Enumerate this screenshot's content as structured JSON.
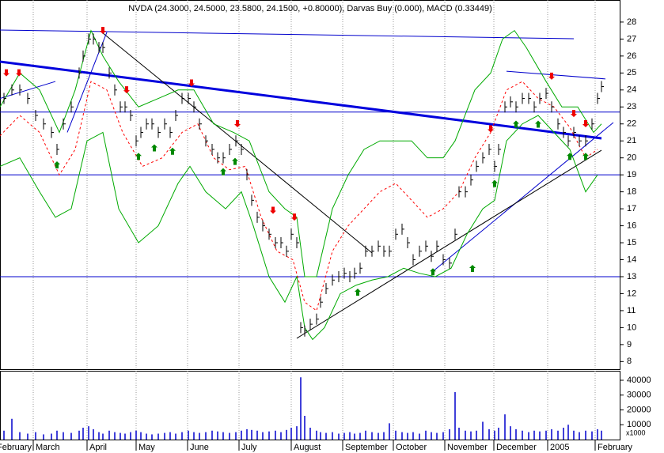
{
  "chart_data": [
    {
      "type": "price",
      "title": "NVDA (24.3000, 24.5000, 23.5800, 24.1500, +0.80000), Darvas Buy (0.000), MACD (0.33449)",
      "xlim": [
        0,
        783
      ],
      "ylim": [
        7.55,
        29.3
      ],
      "yticks": [
        8,
        9,
        10,
        11,
        12,
        13,
        14,
        15,
        16,
        17,
        18,
        19,
        20,
        21,
        22,
        23,
        24,
        25,
        26,
        27,
        28
      ],
      "x": [
        5,
        15,
        25,
        35,
        45,
        55,
        65,
        72,
        80,
        90,
        100,
        105,
        112,
        118,
        125,
        130,
        138,
        145,
        152,
        158,
        165,
        172,
        178,
        185,
        192,
        200,
        208,
        215,
        222,
        230,
        238,
        245,
        252,
        260,
        268,
        275,
        282,
        290,
        298,
        305,
        312,
        318,
        325,
        332,
        340,
        348,
        355,
        362,
        368,
        375,
        380,
        385,
        392,
        400,
        405,
        412,
        420,
        428,
        435,
        442,
        448,
        455,
        462,
        470,
        478,
        485,
        492,
        500,
        508,
        515,
        522,
        530,
        538,
        545,
        552,
        560,
        568,
        575,
        580,
        588,
        595,
        602,
        610,
        618,
        625,
        630,
        638,
        645,
        652,
        660,
        668,
        675,
        682,
        690,
        697,
        705,
        712,
        718,
        725,
        732,
        740,
        748,
        755,
        760
      ],
      "series": [
        {
          "name": "NVDA",
          "color": "#000000",
          "style": "bars",
          "values": [
            23.5,
            24,
            24,
            23.5,
            22.5,
            22,
            21.5,
            20.5,
            22,
            23,
            25,
            26,
            27,
            27,
            26.5,
            26.5,
            25,
            24,
            23,
            23,
            22.5,
            21,
            21.5,
            22,
            22,
            21.5,
            22,
            21.5,
            22.5,
            23.5,
            23.5,
            23,
            22,
            21,
            20.5,
            20,
            20,
            20.5,
            21,
            20.5,
            19,
            17.5,
            16.5,
            16,
            15.5,
            15,
            15,
            14.5,
            15.5,
            15,
            10,
            9.8,
            10.2,
            10.5,
            11.5,
            12.3,
            12.8,
            13,
            13.2,
            13,
            13.2,
            13.5,
            14.5,
            14.5,
            14.8,
            14.5,
            14.5,
            15.5,
            15.8,
            15,
            14,
            14.5,
            14.8,
            14.2,
            14.8,
            14,
            13.8,
            15.5,
            18,
            18,
            18.7,
            19.5,
            20,
            20.5,
            19.5,
            20.5,
            23,
            23.3,
            23,
            23.5,
            23.5,
            23,
            23.5,
            23.8,
            23,
            22,
            21.5,
            21,
            21.5,
            21,
            21,
            22,
            23.5,
            24.2
          ]
        }
      ],
      "bands": [
        {
          "color": "#00aa00",
          "dash": false,
          "x": [
            0,
            25,
            50,
            75,
            95,
            115,
            130,
            150,
            175,
            200,
            225,
            245,
            270,
            295,
            315,
            340,
            360,
            375,
            385,
            400,
            420,
            440,
            460,
            480,
            500,
            520,
            540,
            560,
            575,
            600,
            620,
            635,
            650,
            665,
            690,
            710,
            730,
            750,
            760
          ],
          "values": [
            23,
            25,
            24,
            21.5,
            24,
            27.5,
            26,
            24.5,
            23,
            23.5,
            24,
            24,
            22,
            21.5,
            21,
            18,
            17,
            16.5,
            13,
            13,
            17,
            19,
            20.5,
            21,
            21,
            21,
            20,
            20,
            21,
            24,
            25,
            27,
            27.5,
            26.5,
            24.5,
            23,
            23,
            21.5,
            22
          ]
        },
        {
          "color": "#00aa00",
          "dash": false,
          "x": [
            0,
            25,
            50,
            70,
            90,
            110,
            130,
            150,
            175,
            200,
            225,
            240,
            260,
            285,
            305,
            320,
            340,
            360,
            375,
            385,
            395,
            410,
            430,
            450,
            470,
            490,
            510,
            530,
            550,
            570,
            590,
            610,
            625,
            640,
            660,
            680,
            700,
            720,
            740,
            755
          ],
          "values": [
            19.5,
            20,
            18,
            16.5,
            17,
            21,
            21.5,
            17,
            15,
            16,
            18.5,
            19.5,
            18,
            17,
            18,
            16,
            13,
            11.5,
            13,
            10,
            9.3,
            10,
            12,
            12.5,
            12.8,
            13,
            13.5,
            13.2,
            13,
            13.5,
            15.5,
            17,
            17.5,
            21,
            22,
            22.5,
            21.5,
            20.5,
            18,
            19
          ]
        },
        {
          "color": "#ff0000",
          "dash": true,
          "x": [
            0,
            25,
            50,
            75,
            95,
            115,
            135,
            155,
            180,
            205,
            230,
            250,
            270,
            290,
            310,
            330,
            350,
            370,
            385,
            400,
            420,
            440,
            460,
            480,
            500,
            520,
            540,
            560,
            580,
            600,
            620,
            640,
            660,
            680,
            700,
            720,
            740,
            755
          ],
          "values": [
            21.3,
            22.5,
            21.5,
            19,
            20.5,
            24.5,
            24,
            21.5,
            19.5,
            20,
            21.5,
            22,
            20,
            19.3,
            19.5,
            16.5,
            14.5,
            14,
            11.5,
            11,
            14.5,
            16,
            17,
            18,
            18.5,
            17.5,
            16.5,
            17,
            18,
            20,
            21.5,
            24,
            24.5,
            23.5,
            23,
            21.8,
            20,
            20.5
          ]
        }
      ],
      "lines": [
        {
          "x1": 0,
          "y1": 22.7,
          "x2": 783,
          "y2": 22.7,
          "color": "#0000cc",
          "width": 1
        },
        {
          "x1": 0,
          "y1": 19,
          "x2": 783,
          "y2": 19,
          "color": "#0000cc",
          "width": 1
        },
        {
          "x1": 0,
          "y1": 13,
          "x2": 783,
          "y2": 13,
          "color": "#0000cc",
          "width": 1
        },
        {
          "x1": 0,
          "y1": 25.67,
          "x2": 760,
          "y2": 21.15,
          "color": "#0000dd",
          "width": 3
        },
        {
          "x1": 0,
          "y1": 27.53,
          "x2": 725,
          "y2": 27.02,
          "color": "#0000cc",
          "width": 1
        },
        {
          "x1": 640,
          "y1": 25.1,
          "x2": 765,
          "y2": 24.65,
          "color": "#0000cc",
          "width": 1
        },
        {
          "x1": 545,
          "y1": 13.24,
          "x2": 775,
          "y2": 22.08,
          "color": "#0000cc",
          "width": 1
        },
        {
          "x1": 375,
          "y1": 9.37,
          "x2": 760,
          "y2": 20.45,
          "color": "#000000",
          "width": 1
        },
        {
          "x1": 130,
          "y1": 27.35,
          "x2": 300,
          "y2": 20.9,
          "color": "#000000",
          "width": 1
        },
        {
          "x1": 300,
          "y1": 20.9,
          "x2": 470,
          "y2": 14.4,
          "color": "#000000",
          "width": 1
        },
        {
          "x1": 0,
          "y1": 23.5,
          "x2": 70,
          "y2": 24.5,
          "color": "#0000cc",
          "width": 1
        },
        {
          "x1": 85,
          "y1": 21.5,
          "x2": 135,
          "y2": 27.4,
          "color": "#0000cc",
          "width": 1
        }
      ],
      "sell_color": "#ee0000",
      "buy_color": "#008800",
      "signals": [
        {
          "kind": "sell",
          "x": 8,
          "y": 24.8
        },
        {
          "kind": "sell",
          "x": 24,
          "y": 24.8
        },
        {
          "kind": "sell",
          "x": 130,
          "y": 27.3
        },
        {
          "kind": "sell",
          "x": 160,
          "y": 23.8
        },
        {
          "kind": "sell",
          "x": 242,
          "y": 24.2
        },
        {
          "kind": "sell",
          "x": 300,
          "y": 21.8
        },
        {
          "kind": "sell",
          "x": 345,
          "y": 16.7
        },
        {
          "kind": "sell",
          "x": 372,
          "y": 16.3
        },
        {
          "kind": "sell",
          "x": 620,
          "y": 21.5
        },
        {
          "kind": "sell",
          "x": 697,
          "y": 24.6
        },
        {
          "kind": "sell",
          "x": 725,
          "y": 22.4
        },
        {
          "kind": "sell",
          "x": 740,
          "y": 21.8
        },
        {
          "kind": "buy",
          "x": 72,
          "y": 19.8
        },
        {
          "kind": "buy",
          "x": 175,
          "y": 20.3
        },
        {
          "kind": "buy",
          "x": 195,
          "y": 20.8
        },
        {
          "kind": "buy",
          "x": 218,
          "y": 20.6
        },
        {
          "kind": "buy",
          "x": 282,
          "y": 19.4
        },
        {
          "kind": "buy",
          "x": 297,
          "y": 20
        },
        {
          "kind": "buy",
          "x": 452,
          "y": 12.3
        },
        {
          "kind": "buy",
          "x": 547,
          "y": 13.5
        },
        {
          "kind": "buy",
          "x": 597,
          "y": 13.7
        },
        {
          "kind": "buy",
          "x": 625,
          "y": 18.7
        },
        {
          "kind": "buy",
          "x": 652,
          "y": 22.2
        },
        {
          "kind": "buy",
          "x": 680,
          "y": 22.2
        },
        {
          "kind": "buy",
          "x": 720,
          "y": 20.3
        },
        {
          "kind": "buy",
          "x": 740,
          "y": 20.3
        }
      ]
    },
    {
      "type": "bar",
      "unit_label": "x1000",
      "color": "#0000cc",
      "xlim": [
        0,
        783
      ],
      "ylim": [
        0,
        46400
      ],
      "yticks": [
        10000,
        20000,
        30000,
        40000
      ],
      "xticks": [
        {
          "value": -7,
          "label": "February"
        },
        {
          "value": 42,
          "label": "March"
        },
        {
          "value": 110,
          "label": "April"
        },
        {
          "value": 172,
          "label": "May"
        },
        {
          "value": 237,
          "label": "June"
        },
        {
          "value": 302,
          "label": "July"
        },
        {
          "value": 368,
          "label": "August"
        },
        {
          "value": 433,
          "label": "September"
        },
        {
          "value": 497,
          "label": "October"
        },
        {
          "value": 562,
          "label": "November"
        },
        {
          "value": 624,
          "label": "December"
        },
        {
          "value": 692,
          "label": "2005"
        },
        {
          "value": 752,
          "label": "February"
        }
      ],
      "x": [
        5,
        15,
        25,
        35,
        45,
        55,
        65,
        72,
        80,
        90,
        100,
        105,
        112,
        118,
        125,
        130,
        138,
        145,
        152,
        158,
        165,
        172,
        178,
        185,
        192,
        200,
        208,
        215,
        222,
        230,
        238,
        245,
        252,
        260,
        268,
        275,
        282,
        290,
        298,
        305,
        312,
        318,
        325,
        332,
        340,
        348,
        355,
        362,
        368,
        375,
        380,
        385,
        392,
        400,
        405,
        412,
        420,
        428,
        435,
        442,
        448,
        455,
        462,
        470,
        478,
        485,
        492,
        500,
        508,
        515,
        522,
        530,
        538,
        545,
        552,
        560,
        568,
        575,
        580,
        588,
        595,
        602,
        610,
        618,
        625,
        630,
        638,
        645,
        652,
        660,
        668,
        675,
        682,
        690,
        697,
        705,
        712,
        718,
        725,
        732,
        740,
        748,
        755,
        760
      ],
      "values": [
        6000,
        14000,
        5000,
        4000,
        5000,
        3500,
        4000,
        6000,
        5000,
        4500,
        6000,
        8000,
        9000,
        7000,
        5000,
        4000,
        6000,
        5000,
        4500,
        4000,
        5000,
        6000,
        5000,
        4000,
        3500,
        4000,
        4500,
        5000,
        4000,
        5000,
        6000,
        5000,
        4500,
        5000,
        6000,
        5500,
        5000,
        4500,
        5000,
        6000,
        7000,
        6500,
        6000,
        5000,
        5500,
        6000,
        5000,
        6500,
        8000,
        9000,
        42000,
        16000,
        8000,
        6000,
        5000,
        4500,
        5000,
        4000,
        4500,
        5000,
        4000,
        4500,
        6000,
        5000,
        4500,
        5000,
        11000,
        6000,
        5000,
        4500,
        5000,
        4000,
        6000,
        5000,
        4500,
        5000,
        7000,
        32000,
        8000,
        6000,
        5500,
        6000,
        12000,
        7000,
        6000,
        8000,
        17000,
        9000,
        7000,
        6000,
        5000,
        6000,
        5500,
        6000,
        7000,
        6000,
        8000,
        10000,
        6000,
        5000,
        6000,
        5500,
        7000,
        6000
      ]
    }
  ]
}
